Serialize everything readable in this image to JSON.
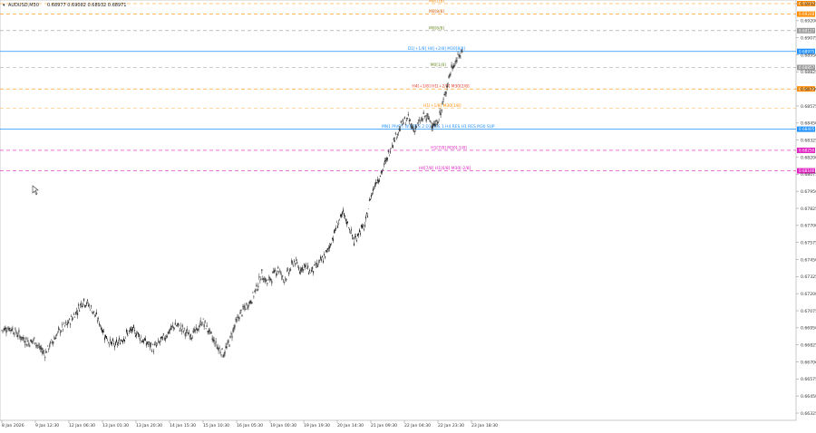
{
  "header": {
    "symbol_text": "AUDUSD,M30",
    "ohlc_text": "0.68977 0.69082 0.68932 0.68971"
  },
  "colors": {
    "candle": "#222222",
    "grid": "#e4e4e4",
    "blue_line": "#1e90ff",
    "orange_line": "#ff8c00",
    "olive_line": "#6b8e23",
    "magenta_line": "#e020c0",
    "red_line": "#e03c28",
    "gray_line": "#9a9a9a"
  },
  "chart_data": {
    "type": "line",
    "title": "AUDUSD,M30",
    "ylim": [
      0.66325,
      0.69325
    ],
    "y_ticks": [
      "0.69325",
      "0.69200",
      "0.69075",
      "0.68950",
      "0.68825",
      "0.68700",
      "0.68575",
      "0.68450",
      "0.68325",
      "0.68200",
      "0.68075",
      "0.67950",
      "0.67825",
      "0.67700",
      "0.67575",
      "0.67450",
      "0.67325",
      "0.67200",
      "0.67075",
      "0.66950",
      "0.66825",
      "0.66700",
      "0.66575",
      "0.66450",
      "0.66325"
    ],
    "x_ticks": [
      "8 Jan 2026",
      "9 Jan 12:30",
      "12 Jan 06:30",
      "13 Jan 01:30",
      "13 Jan 20:30",
      "14 Jan 15:30",
      "15 Jan 10:30",
      "16 Jan 05:30",
      "19 Jan 00:30",
      "19 Jan 19:30",
      "20 Jan 14:30",
      "21 Jan 09:30",
      "22 Jan 04:30",
      "22 Jan 23:30",
      "23 Jan 18:30"
    ],
    "series": [
      {
        "name": "AUDUSD",
        "values": [
          0.6693,
          0.6695,
          0.6694,
          0.669,
          0.6687,
          0.6684,
          0.6686,
          0.668,
          0.6676,
          0.6683,
          0.6689,
          0.6694,
          0.6697,
          0.6702,
          0.6708,
          0.6715,
          0.6712,
          0.6706,
          0.6699,
          0.669,
          0.6684,
          0.6682,
          0.6686,
          0.669,
          0.6693,
          0.6691,
          0.6686,
          0.6683,
          0.668,
          0.6684,
          0.6688,
          0.6693,
          0.6697,
          0.6695,
          0.6691,
          0.669,
          0.6693,
          0.67,
          0.6694,
          0.6686,
          0.668,
          0.6676,
          0.6685,
          0.6697,
          0.6705,
          0.671,
          0.6715,
          0.6724,
          0.6734,
          0.6728,
          0.6733,
          0.6739,
          0.673,
          0.6736,
          0.6744,
          0.6738,
          0.674,
          0.6736,
          0.674,
          0.6744,
          0.675,
          0.676,
          0.6772,
          0.6778,
          0.677,
          0.6758,
          0.6766,
          0.6769,
          0.679,
          0.6802,
          0.6808,
          0.6818,
          0.683,
          0.6838,
          0.6845,
          0.6848,
          0.684,
          0.6845,
          0.685,
          0.6847,
          0.6843,
          0.6852,
          0.687,
          0.6885,
          0.6892,
          0.6897
        ]
      }
    ],
    "levels": [
      {
        "label": "M0[1/8]",
        "value": 0.69325,
        "color": "#ff8c00",
        "style": "dash",
        "label_x": 0.535,
        "label_color": "#ff8c00",
        "tag": "0.69325"
      },
      {
        "label": "M0[8/8]",
        "value": 0.69248,
        "color": "#ff8c00",
        "style": "dash",
        "label_x": 0.535,
        "label_color": "#d05a00",
        "tag": "0.69248"
      },
      {
        "label": "M0[6/8]",
        "value": 0.69127,
        "color": "#9a9a9a",
        "style": "dash",
        "label_x": 0.535,
        "label_color": "#6b8e23",
        "tag": "0.69127"
      },
      {
        "label": "D1[+1/8] H4[+2/8] M30[8/8]",
        "value": 0.68975,
        "color": "#1e90ff",
        "style": "solid",
        "label_x": 0.535,
        "label_color": "#1e90ff",
        "tag": "0.68975"
      },
      {
        "label": "M0[1/8]",
        "value": 0.68857,
        "color": "#9a9a9a",
        "style": "dash",
        "label_x": 0.537,
        "label_color": "#6b8e23",
        "tag": "0.68857"
      },
      {
        "label": "H4[+1/8] H1[+2/8] M30[2/8]",
        "value": 0.687,
        "color": "#ff8c00",
        "style": "dash",
        "label_x": 0.54,
        "label_color": "#e03c28",
        "tag": "0.68700"
      },
      {
        "label": "H1[+1/8] M30[1/8]",
        "value": 0.6856,
        "color": "#ffb347",
        "style": "dash",
        "label_x": 0.542,
        "label_color": "#ff8c00",
        "tag": ""
      },
      {
        "label": "MN1 PIVOT W1 RES 2 D1 RES 1 H4 RES H1 RES M30 SUP",
        "value": 0.68405,
        "color": "#1e90ff",
        "style": "solid",
        "label_x": 0.537,
        "label_color": "#1e90ff",
        "tag": "0.68405"
      },
      {
        "label": "H1[7/8] M30[-1/8]",
        "value": 0.6825,
        "color": "#e020c0",
        "style": "dash",
        "label_x": 0.55,
        "label_color": "#e020c0",
        "tag": "0.68250"
      },
      {
        "label": "H4[7/8] H1[6/8] M30[-2/8]",
        "value": 0.681,
        "color": "#e020c0",
        "style": "dash",
        "label_x": 0.545,
        "label_color": "#e020c0",
        "tag": "0.68100"
      }
    ],
    "grid": false,
    "legend": "none"
  }
}
